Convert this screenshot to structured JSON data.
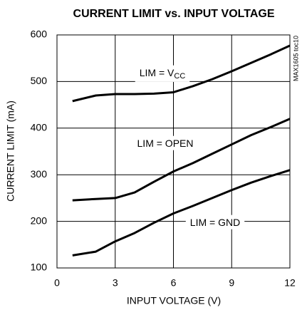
{
  "chart_data": {
    "type": "line",
    "title": "CURRENT LIMIT vs. INPUT VOLTAGE",
    "xlabel": "INPUT VOLTAGE (V)",
    "ylabel": "CURRENT LIMIT (mA)",
    "note": "MAX1605 toc10",
    "x": [
      0.8,
      2,
      3,
      4,
      5,
      6,
      7,
      8,
      9,
      10,
      11,
      12
    ],
    "series": [
      {
        "name": "LIM = V",
        "name_sub": "CC",
        "color": "#000000",
        "values": [
          458,
          470,
          473,
          473,
          474,
          477,
          490,
          505,
          522,
          540,
          558,
          577
        ]
      },
      {
        "name": "LIM = OPEN",
        "color": "#000000",
        "values": [
          245,
          248,
          250,
          262,
          285,
          307,
          325,
          345,
          365,
          385,
          402,
          420
        ]
      },
      {
        "name": "LIM = GND",
        "color": "#000000",
        "values": [
          127,
          135,
          157,
          175,
          197,
          217,
          233,
          250,
          267,
          283,
          297,
          310
        ]
      }
    ],
    "xlim": [
      0,
      12
    ],
    "xticks": [
      0,
      3,
      6,
      9,
      12
    ],
    "ylim": [
      100,
      600
    ],
    "yticks": [
      100,
      200,
      300,
      400,
      500,
      600
    ],
    "grid": true
  }
}
